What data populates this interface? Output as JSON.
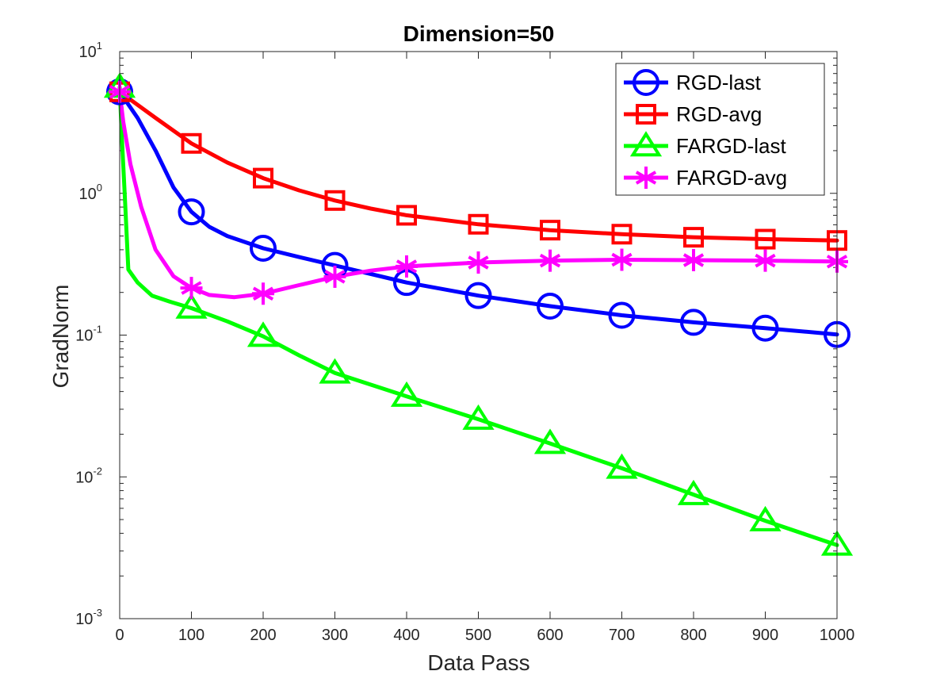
{
  "chart_data": {
    "type": "line",
    "title": "Dimension=50",
    "xlabel": "Data Pass",
    "ylabel": "GradNorm",
    "xlim": [
      0,
      1000
    ],
    "ylim": [
      0.001,
      10
    ],
    "yscale": "log",
    "xticks": [
      0,
      100,
      200,
      300,
      400,
      500,
      600,
      700,
      800,
      900,
      1000
    ],
    "yticks": [
      {
        "value": 0.001,
        "base": "10",
        "exp": "-3"
      },
      {
        "value": 0.01,
        "base": "10",
        "exp": "-2"
      },
      {
        "value": 0.1,
        "base": "10",
        "exp": "-1"
      },
      {
        "value": 1,
        "base": "10",
        "exp": "0"
      },
      {
        "value": 10,
        "base": "10",
        "exp": "1"
      }
    ],
    "legend_position": "top-right",
    "series": [
      {
        "name": "RGD-last",
        "color": "#0000ff",
        "marker": "circle",
        "line": [
          [
            0,
            5.2
          ],
          [
            25,
            3.4
          ],
          [
            50,
            2.0
          ],
          [
            75,
            1.1
          ],
          [
            100,
            0.74
          ],
          [
            125,
            0.58
          ],
          [
            150,
            0.5
          ],
          [
            200,
            0.41
          ],
          [
            250,
            0.355
          ],
          [
            300,
            0.31
          ],
          [
            400,
            0.235
          ],
          [
            500,
            0.19
          ],
          [
            600,
            0.16
          ],
          [
            700,
            0.138
          ],
          [
            800,
            0.123
          ],
          [
            900,
            0.112
          ],
          [
            1000,
            0.101
          ]
        ],
        "markers": [
          [
            0,
            5.2
          ],
          [
            100,
            0.74
          ],
          [
            200,
            0.41
          ],
          [
            300,
            0.31
          ],
          [
            400,
            0.235
          ],
          [
            500,
            0.19
          ],
          [
            600,
            0.16
          ],
          [
            700,
            0.138
          ],
          [
            800,
            0.123
          ],
          [
            900,
            0.112
          ],
          [
            1000,
            0.101
          ]
        ]
      },
      {
        "name": "RGD-avg",
        "color": "#ff0000",
        "marker": "square",
        "line": [
          [
            0,
            5.2
          ],
          [
            50,
            3.4
          ],
          [
            100,
            2.25
          ],
          [
            150,
            1.65
          ],
          [
            200,
            1.28
          ],
          [
            250,
            1.05
          ],
          [
            300,
            0.89
          ],
          [
            350,
            0.78
          ],
          [
            400,
            0.7
          ],
          [
            500,
            0.605
          ],
          [
            600,
            0.55
          ],
          [
            700,
            0.515
          ],
          [
            800,
            0.49
          ],
          [
            900,
            0.475
          ],
          [
            1000,
            0.465
          ]
        ],
        "markers": [
          [
            0,
            5.2
          ],
          [
            100,
            2.25
          ],
          [
            200,
            1.28
          ],
          [
            300,
            0.89
          ],
          [
            400,
            0.7
          ],
          [
            500,
            0.605
          ],
          [
            600,
            0.55
          ],
          [
            700,
            0.515
          ],
          [
            800,
            0.49
          ],
          [
            900,
            0.475
          ],
          [
            1000,
            0.465
          ]
        ]
      },
      {
        "name": "FARGD-last",
        "color": "#00ff00",
        "marker": "triangle",
        "line": [
          [
            0,
            5.6
          ],
          [
            3,
            2.5
          ],
          [
            7,
            1.0
          ],
          [
            12,
            0.29
          ],
          [
            25,
            0.235
          ],
          [
            45,
            0.19
          ],
          [
            70,
            0.172
          ],
          [
            100,
            0.155
          ],
          [
            150,
            0.125
          ],
          [
            200,
            0.098
          ],
          [
            250,
            0.072
          ],
          [
            300,
            0.054
          ],
          [
            400,
            0.037
          ],
          [
            500,
            0.0255
          ],
          [
            600,
            0.0172
          ],
          [
            700,
            0.0115
          ],
          [
            800,
            0.0075
          ],
          [
            900,
            0.0049
          ],
          [
            1000,
            0.0033
          ]
        ],
        "markers": [
          [
            0,
            5.6
          ],
          [
            100,
            0.155
          ],
          [
            200,
            0.098
          ],
          [
            300,
            0.054
          ],
          [
            400,
            0.037
          ],
          [
            500,
            0.0255
          ],
          [
            600,
            0.0172
          ],
          [
            700,
            0.0115
          ],
          [
            800,
            0.0075
          ],
          [
            900,
            0.0049
          ],
          [
            1000,
            0.0033
          ]
        ]
      },
      {
        "name": "FARGD-avg",
        "color": "#ff00ff",
        "marker": "asterisk",
        "line": [
          [
            0,
            5.2
          ],
          [
            5,
            3.2
          ],
          [
            15,
            1.6
          ],
          [
            30,
            0.8
          ],
          [
            50,
            0.4
          ],
          [
            75,
            0.26
          ],
          [
            100,
            0.215
          ],
          [
            125,
            0.192
          ],
          [
            160,
            0.185
          ],
          [
            200,
            0.196
          ],
          [
            250,
            0.225
          ],
          [
            300,
            0.258
          ],
          [
            350,
            0.285
          ],
          [
            400,
            0.305
          ],
          [
            500,
            0.325
          ],
          [
            600,
            0.335
          ],
          [
            700,
            0.34
          ],
          [
            800,
            0.338
          ],
          [
            900,
            0.335
          ],
          [
            1000,
            0.33
          ]
        ],
        "markers": [
          [
            0,
            5.2
          ],
          [
            100,
            0.215
          ],
          [
            200,
            0.196
          ],
          [
            300,
            0.258
          ],
          [
            400,
            0.305
          ],
          [
            500,
            0.325
          ],
          [
            600,
            0.335
          ],
          [
            700,
            0.34
          ],
          [
            800,
            0.338
          ],
          [
            900,
            0.335
          ],
          [
            1000,
            0.33
          ]
        ]
      }
    ]
  }
}
